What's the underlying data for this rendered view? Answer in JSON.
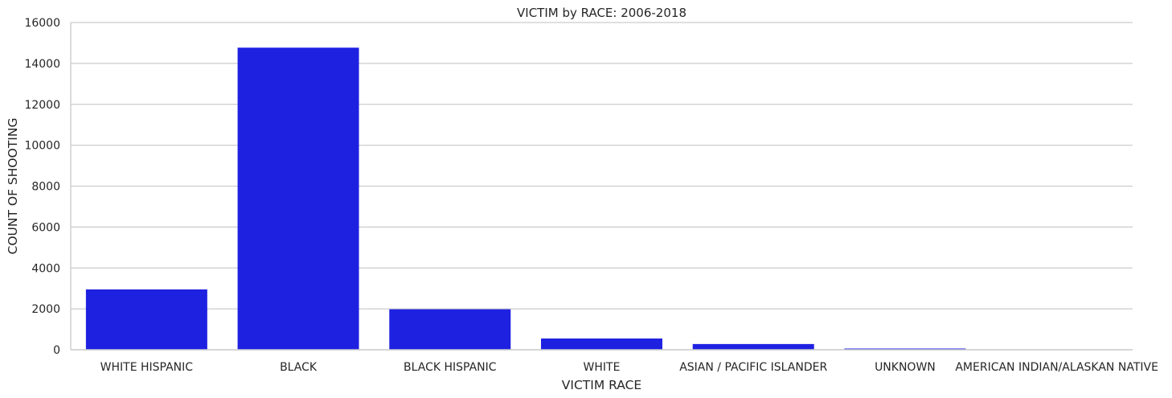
{
  "chart_data": {
    "type": "bar",
    "title": "VICTIM by RACE: 2006-2018",
    "xlabel": "VICTIM RACE",
    "ylabel": "COUNT OF SHOOTING",
    "categories": [
      "WHITE HISPANIC",
      "BLACK",
      "BLACK HISPANIC",
      "WHITE",
      "ASIAN / PACIFIC ISLANDER",
      "UNKNOWN",
      "AMERICAN INDIAN/ALASKAN NATIVE"
    ],
    "values": [
      2950,
      14770,
      1980,
      550,
      280,
      60,
      10
    ],
    "ylim": [
      0,
      16000
    ],
    "yticks": [
      0,
      2000,
      4000,
      6000,
      8000,
      10000,
      12000,
      14000,
      16000
    ],
    "grid": "horizontal",
    "bar_color": "#1f21e1",
    "grid_color": "#cccccc",
    "text_color": "#262626"
  }
}
